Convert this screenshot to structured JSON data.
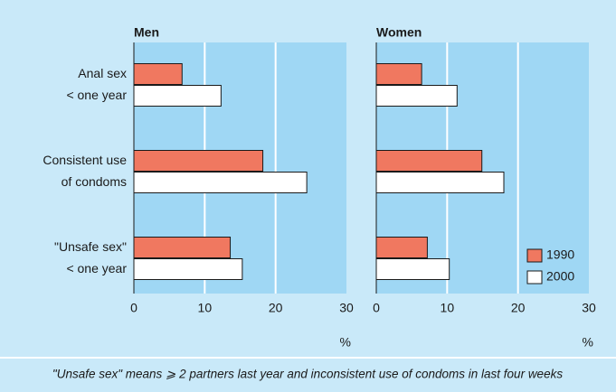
{
  "chart_data": [
    {
      "type": "hbar",
      "title": "Men",
      "categories": [
        [
          "Anal sex",
          "< one year"
        ],
        [
          "Consistent use",
          "of condoms"
        ],
        [
          "\"Unsafe sex\"",
          "< one year"
        ]
      ],
      "series": [
        {
          "color": "#f07860",
          "values": [
            6.8,
            18.2,
            13.6
          ]
        },
        {
          "color": "#ffffff",
          "values": [
            12.3,
            24.4,
            15.3
          ]
        }
      ],
      "xlim": [
        0,
        30
      ],
      "xticks": [
        0,
        10,
        20,
        30
      ],
      "xlabel": "%",
      "grid": true
    },
    {
      "type": "hbar",
      "title": "Women",
      "series": [
        {
          "name": "1990",
          "color": "#f07860",
          "values": [
            6.4,
            14.9,
            7.2
          ]
        },
        {
          "name": "2000",
          "color": "#ffffff",
          "values": [
            11.4,
            18.0,
            10.3
          ]
        }
      ],
      "xlim": [
        0,
        30
      ],
      "xticks": [
        0,
        10,
        20,
        30
      ],
      "xlabel": "%",
      "grid": true,
      "legend": "lower right"
    }
  ],
  "footnote": "\"Unsafe sex\" means ⩾ 2 partners last year and inconsistent use of condoms in last four weeks"
}
